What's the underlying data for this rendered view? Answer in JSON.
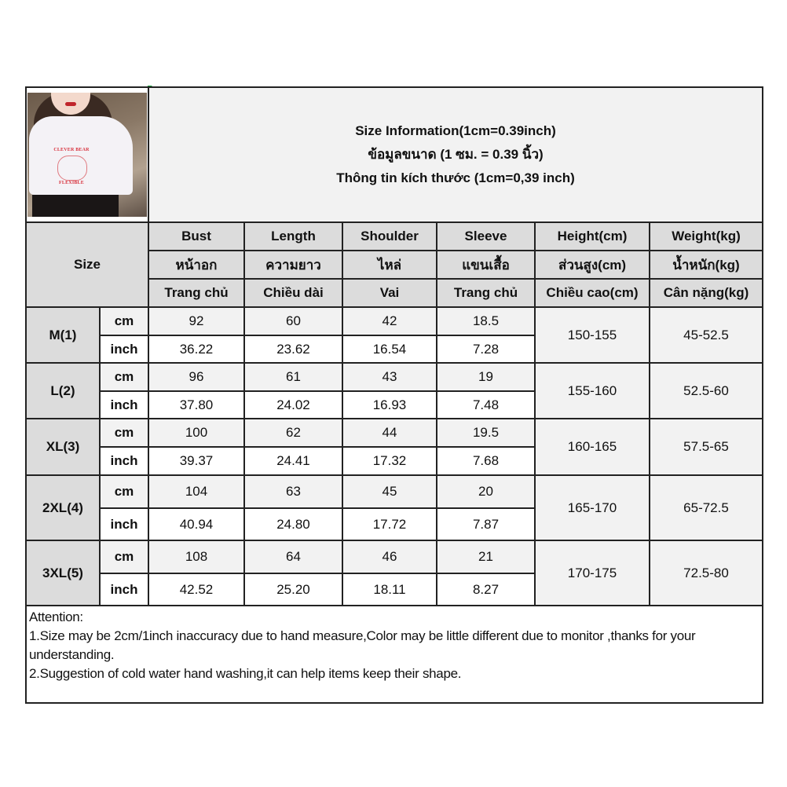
{
  "title": {
    "line1": "Size Information(1cm=0.39inch)",
    "line2": "ข้อมูลขนาด (1 ซม. = 0.39 นิ้ว)",
    "line3": "Thông tin kích thước (1cm=0,39 inch)"
  },
  "size_label": "Size",
  "columns": [
    {
      "en": "Bust",
      "th": "หน้าอก",
      "vi": "Trang chủ"
    },
    {
      "en": "Length",
      "th": "ความยาว",
      "vi": "Chiều dài"
    },
    {
      "en": "Shoulder",
      "th": "ไหล่",
      "vi": "Vai"
    },
    {
      "en": "Sleeve",
      "th": "แขนเสื้อ",
      "vi": "Trang chủ"
    },
    {
      "en": "Height(cm)",
      "th": "ส่วนสูง(cm)",
      "vi": "Chiều cao(cm)"
    },
    {
      "en": "Weight(kg)",
      "th": "น้ำหนัก(kg)",
      "vi": "Cân nặng(kg)"
    }
  ],
  "units": {
    "cm": "cm",
    "inch": "inch"
  },
  "rows": [
    {
      "size": "M(1)",
      "cm": [
        "92",
        "60",
        "42",
        "18.5"
      ],
      "inch": [
        "36.22",
        "23.62",
        "16.54",
        "7.28"
      ],
      "height": "150-155",
      "weight": "45-52.5"
    },
    {
      "size": "L(2)",
      "cm": [
        "96",
        "61",
        "43",
        "19"
      ],
      "inch": [
        "37.80",
        "24.02",
        "16.93",
        "7.48"
      ],
      "height": "155-160",
      "weight": "52.5-60"
    },
    {
      "size": "XL(3)",
      "cm": [
        "100",
        "62",
        "44",
        "19.5"
      ],
      "inch": [
        "39.37",
        "24.41",
        "17.32",
        "7.68"
      ],
      "height": "160-165",
      "weight": "57.5-65"
    },
    {
      "size": "2XL(4)",
      "cm": [
        "104",
        "63",
        "45",
        "20"
      ],
      "inch": [
        "40.94",
        "24.80",
        "17.72",
        "7.87"
      ],
      "height": "165-170",
      "weight": "65-72.5"
    },
    {
      "size": "3XL(5)",
      "cm": [
        "108",
        "64",
        "46",
        "21"
      ],
      "inch": [
        "42.52",
        "25.20",
        "18.11",
        "8.27"
      ],
      "height": "170-175",
      "weight": "72.5-80"
    }
  ],
  "notes": {
    "heading": "Attention:",
    "items": [
      "1.Size may be 2cm/1inch inaccuracy due to hand measure,Color may be little different due to monitor ,thanks for your understanding.",
      "2.Suggestion of cold water hand washing,it can help items keep their shape."
    ]
  },
  "photo": {
    "shirt_print_text": [
      "CLEVER BEAR",
      "FLEXIBLE"
    ]
  },
  "colors": {
    "header_bg": "#dcdcdc",
    "cm_row_bg": "#f2f2f2",
    "border": "#222222"
  }
}
